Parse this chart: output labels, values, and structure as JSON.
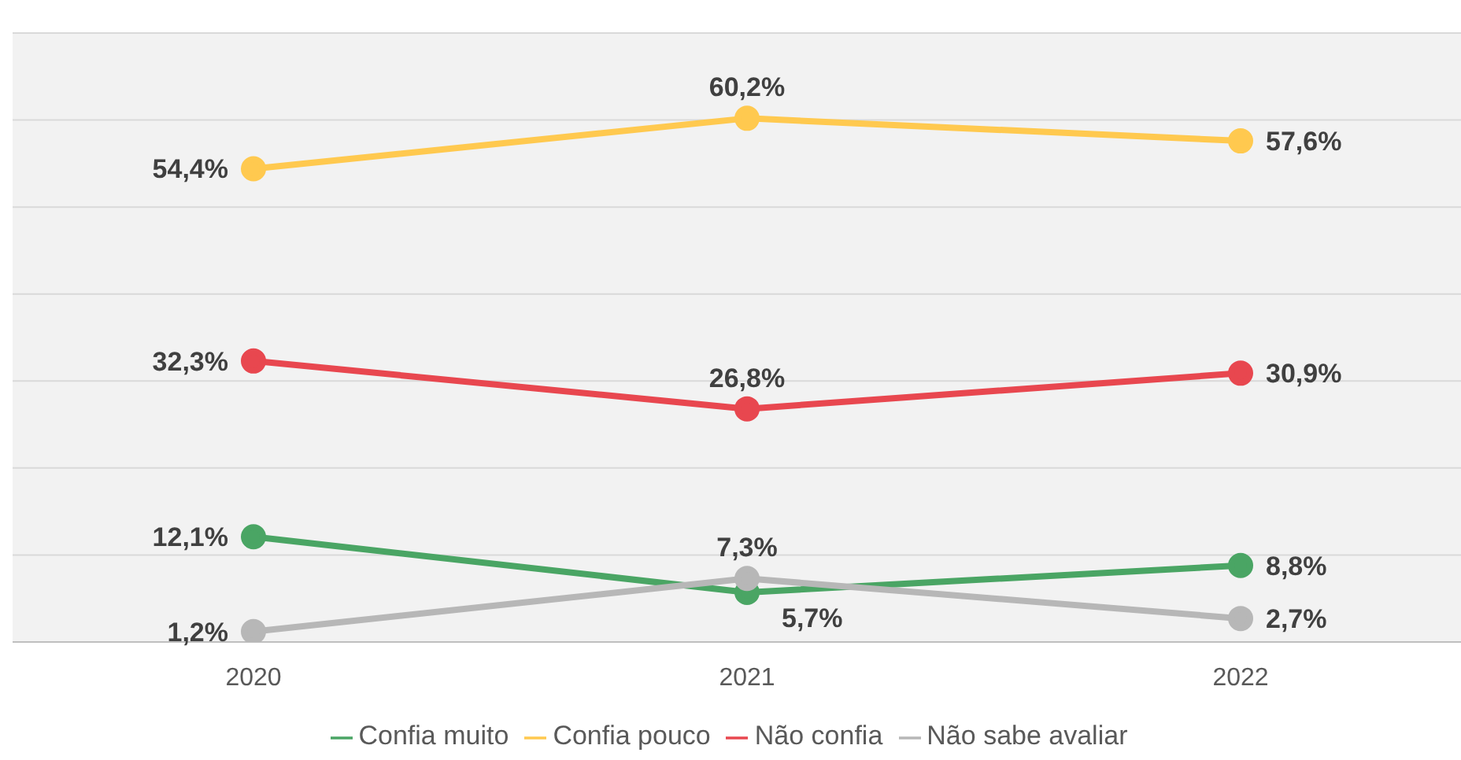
{
  "chart_data": {
    "type": "line",
    "categories": [
      "2020",
      "2021",
      "2022"
    ],
    "series": [
      {
        "name": "Confia muito",
        "color": "#4aa564",
        "values": [
          12.1,
          5.7,
          8.8
        ],
        "value_labels": [
          "12,1%",
          "5,7%",
          "8,8%"
        ]
      },
      {
        "name": "Confia pouco",
        "color": "#ffc94f",
        "values": [
          54.4,
          60.2,
          57.6
        ],
        "value_labels": [
          "54,4%",
          "60,2%",
          "57,6%"
        ]
      },
      {
        "name": "Não confia",
        "color": "#e8474f",
        "values": [
          32.3,
          26.8,
          30.9
        ],
        "value_labels": [
          "32,3%",
          "26,8%",
          "30,9%"
        ]
      },
      {
        "name": "Não sabe avaliar",
        "color": "#b7b7b7",
        "values": [
          1.2,
          7.3,
          2.7
        ],
        "value_labels": [
          "1,2%",
          "7,3%",
          "2,7%"
        ]
      }
    ],
    "ylim": [
      0,
      70
    ],
    "yticks": [
      {
        "value": 0,
        "label": null
      },
      {
        "value": 10,
        "label": null
      },
      {
        "value": 20,
        "label": null
      },
      {
        "value": 30,
        "label": null
      },
      {
        "value": 40,
        "label": null
      },
      {
        "value": 50,
        "label": null
      },
      {
        "value": 60,
        "label": null
      },
      {
        "value": 70,
        "label": null
      }
    ],
    "tick_labels": "x",
    "grid": "y",
    "legend": "bottom",
    "marker": "circle",
    "line_style": "solid"
  }
}
